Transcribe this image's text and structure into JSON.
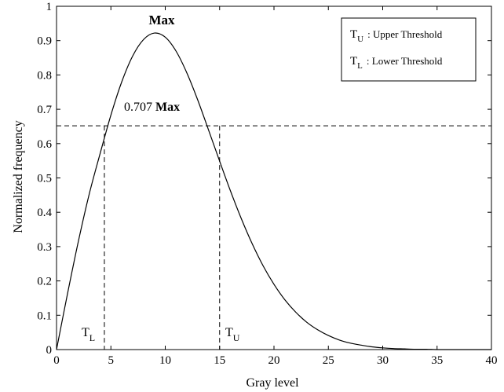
{
  "chart_data": {
    "type": "line",
    "xlabel": "Gray level",
    "ylabel": "Normalized frequency",
    "xlim": [
      0,
      40
    ],
    "ylim": [
      0,
      1
    ],
    "xticks": [
      0,
      5,
      10,
      15,
      20,
      25,
      30,
      35,
      40
    ],
    "yticks": [
      0,
      0.1,
      0.2,
      0.3,
      0.4,
      0.5,
      0.6,
      0.7,
      0.8,
      0.9,
      1
    ],
    "ytick_labels": [
      "0",
      "0.1",
      "0.2",
      "0.3",
      "0.4",
      "0.5",
      "0.6",
      "0.7",
      "0.8",
      "0.9",
      "1"
    ],
    "grid": false,
    "series": [
      {
        "x": [
          0,
          1,
          2,
          3,
          4,
          5,
          6,
          7,
          8,
          9,
          10,
          11,
          12,
          13,
          14,
          15,
          16,
          17,
          18,
          19,
          20,
          21,
          22,
          23,
          24,
          25,
          26,
          27,
          28,
          29,
          30,
          31,
          32,
          33,
          34,
          35,
          36,
          37,
          38,
          39,
          40
        ],
        "values": [
          0,
          0.161,
          0.314,
          0.452,
          0.57,
          0.683,
          0.78,
          0.855,
          0.903,
          0.922,
          0.91,
          0.869,
          0.805,
          0.726,
          0.638,
          0.549,
          0.462,
          0.381,
          0.308,
          0.244,
          0.19,
          0.145,
          0.109,
          0.08,
          0.058,
          0.041,
          0.028,
          0.019,
          0.013,
          0.008,
          0.005,
          0.003,
          0.002,
          0.001,
          0.001,
          0.0,
          0.0,
          0.0,
          0.0,
          0.0,
          0.0
        ]
      }
    ],
    "reference_lines": {
      "threshold_level": 0.652,
      "tl_x": 4.4,
      "tu_x": 15.0
    },
    "annotations": {
      "max_label": "Max",
      "threshold_prefix": "0.707",
      "threshold_bold": "Max",
      "tl_symbol": "T",
      "tl_sub": "L",
      "tu_symbol": "T",
      "tu_sub": "U"
    },
    "legend": {
      "position": "top-right",
      "entries": [
        {
          "symbol": "T",
          "sub": "U",
          "text": ": Upper Threshold"
        },
        {
          "symbol": "T",
          "sub": "L",
          "text": ": Lower Threshold"
        }
      ]
    }
  }
}
